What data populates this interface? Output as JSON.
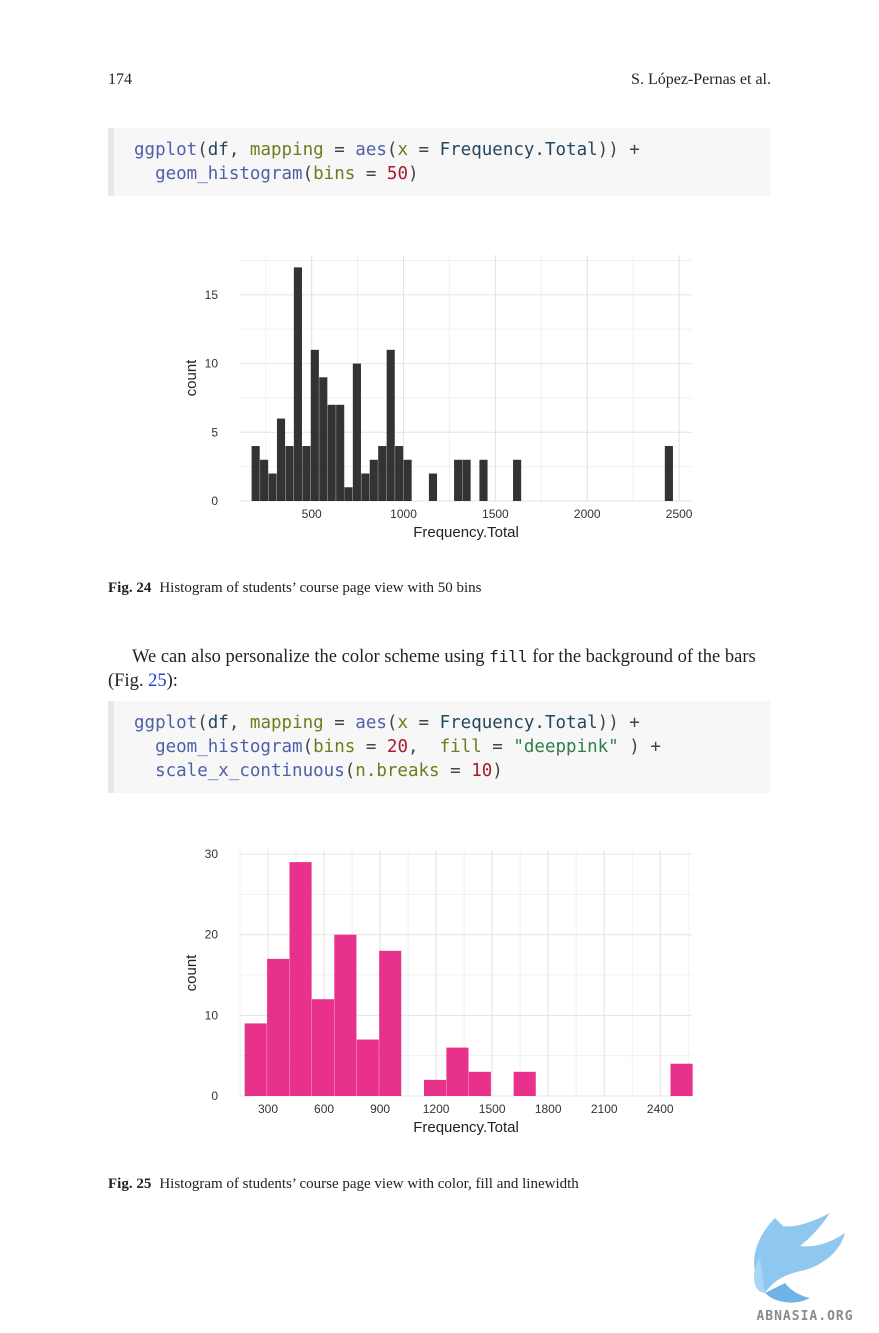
{
  "header": {
    "page_number": "174",
    "authors": "S. López-Pernas et al."
  },
  "code1": {
    "l1": {
      "fn": "ggplot",
      "p1": "(",
      "var": "df",
      "c1": ", ",
      "arg": "mapping",
      "eq": " = ",
      "fn2": "aes",
      "p2": "(",
      "arg2": "x",
      "eq2": " = ",
      "var2": "Frequency.Total",
      "p3": ")) +"
    },
    "l2": {
      "indent": "  ",
      "fn": "geom_histogram",
      "p1": "(",
      "arg": "bins",
      "eq": " = ",
      "num": "50",
      "p2": ")"
    }
  },
  "figure24": {
    "label": "Fig. 24",
    "caption": "Histogram of students’ course page view with 50 bins"
  },
  "paragraph": {
    "before": "We can also personalize the color scheme using ",
    "code": "fill",
    "middle": " for the background of the bars (Fig. ",
    "ref": "25",
    "after": "):"
  },
  "code2": {
    "l1": {
      "fn": "ggplot",
      "p1": "(",
      "var": "df",
      "c1": ", ",
      "arg": "mapping",
      "eq": " = ",
      "fn2": "aes",
      "p2": "(",
      "arg2": "x",
      "eq2": " = ",
      "var2": "Frequency.Total",
      "p3": ")) +"
    },
    "l2": {
      "indent": "  ",
      "fn": "geom_histogram",
      "p1": "(",
      "arg": "bins",
      "eq": " = ",
      "num": "20",
      "c1": ",  ",
      "arg2": "fill",
      "eq2": " = ",
      "str": "\"deeppink\"",
      "p2": " ) +"
    },
    "l3": {
      "indent": "  ",
      "fn": "scale_x_continuous",
      "p1": "(",
      "arg": "n.breaks",
      "eq": " = ",
      "num": "10",
      "p2": ")"
    }
  },
  "figure25": {
    "label": "Fig. 25",
    "caption": "Histogram of students’ course page view with color, fill and linewidth"
  },
  "watermark": "ABNASIA.ORG",
  "chart_data": [
    {
      "type": "bar",
      "xlabel": "Frequency.Total",
      "ylabel": "count",
      "xlim": [
        110,
        2570
      ],
      "ylim": [
        0,
        17.9
      ],
      "grid": true,
      "bar_color": "#333333",
      "x_ticks": [
        500,
        1000,
        1500,
        2000,
        2500
      ],
      "y_ticks": [
        0,
        5,
        10,
        15
      ],
      "bin_width": 45.9,
      "bins": [
        {
          "x": 196,
          "count": 4
        },
        {
          "x": 242,
          "count": 3
        },
        {
          "x": 288,
          "count": 2
        },
        {
          "x": 334,
          "count": 6
        },
        {
          "x": 380,
          "count": 4
        },
        {
          "x": 426,
          "count": 17
        },
        {
          "x": 472,
          "count": 4
        },
        {
          "x": 518,
          "count": 11
        },
        {
          "x": 564,
          "count": 9
        },
        {
          "x": 610,
          "count": 7
        },
        {
          "x": 656,
          "count": 7
        },
        {
          "x": 701,
          "count": 1
        },
        {
          "x": 747,
          "count": 10
        },
        {
          "x": 793,
          "count": 2
        },
        {
          "x": 839,
          "count": 3
        },
        {
          "x": 885,
          "count": 4
        },
        {
          "x": 931,
          "count": 11
        },
        {
          "x": 977,
          "count": 4
        },
        {
          "x": 1023,
          "count": 3
        },
        {
          "x": 1161,
          "count": 2
        },
        {
          "x": 1298,
          "count": 3
        },
        {
          "x": 1344,
          "count": 3
        },
        {
          "x": 1436,
          "count": 3
        },
        {
          "x": 1619,
          "count": 3
        },
        {
          "x": 2445,
          "count": 4
        }
      ]
    },
    {
      "type": "bar",
      "xlabel": "Frequency.Total",
      "ylabel": "count",
      "xlim": [
        150,
        2570
      ],
      "ylim": [
        0,
        30.5
      ],
      "grid": true,
      "bar_color": "#e8318a",
      "x_ticks": [
        300,
        600,
        900,
        1200,
        1500,
        1800,
        2100,
        2400
      ],
      "y_ticks": [
        0,
        10,
        20,
        30
      ],
      "bin_width": 120,
      "bins": [
        {
          "x": 235,
          "count": 9
        },
        {
          "x": 355,
          "count": 17
        },
        {
          "x": 475,
          "count": 29
        },
        {
          "x": 595,
          "count": 12
        },
        {
          "x": 715,
          "count": 20
        },
        {
          "x": 835,
          "count": 7
        },
        {
          "x": 955,
          "count": 18
        },
        {
          "x": 1195,
          "count": 2
        },
        {
          "x": 1315,
          "count": 6
        },
        {
          "x": 1435,
          "count": 3
        },
        {
          "x": 1675,
          "count": 3
        },
        {
          "x": 2515,
          "count": 4
        }
      ]
    }
  ]
}
